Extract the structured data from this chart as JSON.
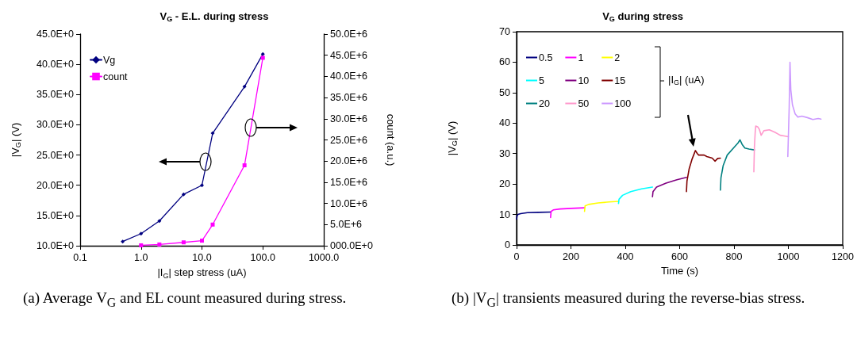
{
  "chart_data": [
    {
      "type": "line",
      "title": "V$_{G}$ - E.L. during stress",
      "xlabel": "|I$_{G}$| step stress (uA)",
      "ylabel": "|V$_{G}$| (V)",
      "y2label": "count (a.u.)",
      "log": "x",
      "legend": "top left",
      "xlim": [
        0.1,
        1000
      ],
      "xticks": [
        0.1,
        {
          "value": 1,
          "label": "1.0"
        },
        {
          "value": 10,
          "label": "10.0"
        },
        {
          "value": 100,
          "label": "100.0"
        },
        {
          "value": 1000,
          "label": "1000.0"
        }
      ],
      "ylim": [
        10,
        45
      ],
      "yticks": [
        {
          "value": 10,
          "label": "10.0E+0"
        },
        {
          "value": 15,
          "label": "15.0E+0"
        },
        {
          "value": 20,
          "label": "20.0E+0"
        },
        {
          "value": 25,
          "label": "25.0E+0"
        },
        {
          "value": 30,
          "label": "30.0E+0"
        },
        {
          "value": 35,
          "label": "35.0E+0"
        },
        {
          "value": 40,
          "label": "40.0E+0"
        },
        {
          "value": 45,
          "label": "45.0E+0"
        }
      ],
      "y2lim": [
        0,
        50000000
      ],
      "y2ticks": [
        {
          "value": 0,
          "label": "000.0E+0"
        },
        {
          "value": 5000000,
          "label": "5.0E+6"
        },
        {
          "value": 10000000,
          "label": "10.0E+6"
        },
        {
          "value": 15000000,
          "label": "15.0E+6"
        },
        {
          "value": 20000000,
          "label": "20.0E+6"
        },
        {
          "value": 25000000,
          "label": "25.0E+6"
        },
        {
          "value": 30000000,
          "label": "30.0E+6"
        },
        {
          "value": 35000000,
          "label": "35.0E+6"
        },
        {
          "value": 40000000,
          "label": "40.0E+6"
        },
        {
          "value": 45000000,
          "label": "45.0E+6"
        },
        {
          "value": 50000000,
          "label": "50.0E+6"
        }
      ],
      "series": [
        {
          "name": "Vg",
          "color": "#000080",
          "marker": "diamond",
          "x": [
            0.5,
            1,
            2,
            5,
            10,
            15,
            50,
            100
          ],
          "values": [
            10.7,
            12.0,
            14.1,
            18.5,
            20.0,
            28.6,
            36.3,
            41.7
          ]
        },
        {
          "name": "count",
          "color": "#ff00ff",
          "marker": "square",
          "axis": "y2",
          "x": [
            1,
            2,
            5,
            10,
            15,
            50,
            100
          ],
          "values": [
            100000,
            300000,
            800000,
            1200000,
            5000000,
            19000000,
            44400000
          ]
        }
      ],
      "annotations": [
        "(a) Average V$_{G}$ and EL count measured during stress."
      ]
    },
    {
      "type": "line",
      "title": "V$_{G}$ during stress",
      "xlabel": "Time (s)",
      "ylabel": "|V$_{G}$| (V)",
      "legend": "top left",
      "legend_title": "|I$_{G}$| (uA)",
      "marker": "none",
      "xlim": [
        0,
        1200
      ],
      "xticks": [
        0,
        200,
        400,
        600,
        800,
        1000,
        1200
      ],
      "ylim": [
        0,
        70
      ],
      "yticks": [
        0,
        10,
        20,
        30,
        40,
        50,
        60,
        70
      ],
      "series": [
        {
          "name": "0.5",
          "color": "#000080",
          "x": [
            0,
            2,
            5,
            15,
            40,
            80,
            125
          ],
          "values": [
            8.5,
            9.6,
            10.0,
            10.3,
            10.6,
            10.7,
            10.8
          ]
        },
        {
          "name": "1",
          "color": "#ff00ff",
          "x": [
            125,
            127,
            135,
            160,
            200,
            250
          ],
          "values": [
            9.0,
            11.0,
            11.5,
            11.8,
            12.0,
            12.2
          ]
        },
        {
          "name": "2",
          "color": "#ffff00",
          "x": [
            250,
            252,
            265,
            300,
            340,
            375
          ],
          "values": [
            11.0,
            12.8,
            13.3,
            13.8,
            14.1,
            14.3
          ]
        },
        {
          "name": "5",
          "color": "#00ffff",
          "x": [
            375,
            377,
            390,
            420,
            460,
            500
          ],
          "values": [
            13.6,
            15.0,
            16.3,
            17.5,
            18.4,
            19.0
          ]
        },
        {
          "name": "10",
          "color": "#800080",
          "x": [
            500,
            502,
            515,
            550,
            590,
            625
          ],
          "values": [
            15.8,
            17.5,
            19.0,
            20.3,
            21.4,
            22.2
          ]
        },
        {
          "name": "15",
          "color": "#800000",
          "x": [
            625,
            627,
            635,
            645,
            658,
            665,
            670,
            690,
            700,
            720,
            730,
            740,
            750
          ],
          "values": [
            17.5,
            21.0,
            25.0,
            28.0,
            31.0,
            30.0,
            29.5,
            29.5,
            29.0,
            28.5,
            27.5,
            28.4,
            28.5
          ]
        },
        {
          "name": "20",
          "color": "#008080",
          "x": [
            750,
            752,
            760,
            775,
            800,
            815,
            822,
            830,
            840,
            855,
            875
          ],
          "values": [
            18.0,
            22.0,
            26.0,
            29.5,
            32.0,
            33.5,
            34.5,
            33.0,
            31.8,
            31.5,
            31.2
          ]
        },
        {
          "name": "50",
          "color": "#ff99cc",
          "x": [
            873,
            875,
            878,
            880,
            887,
            893,
            900,
            910,
            930,
            950,
            970,
            985,
            1000
          ],
          "values": [
            24.0,
            32.0,
            37.0,
            39.0,
            38.8,
            38.0,
            36.0,
            37.5,
            37.8,
            37.0,
            36.0,
            35.8,
            35.5
          ]
        },
        {
          "name": "100",
          "color": "#cc99ff",
          "x": [
            998,
            1003,
            1006,
            1009,
            1015,
            1025,
            1035,
            1050,
            1070,
            1090,
            1110,
            1120
          ],
          "values": [
            29.0,
            45.0,
            60.0,
            51.0,
            46.0,
            43.0,
            42.0,
            42.3,
            41.8,
            41.2,
            41.5,
            41.3
          ]
        }
      ],
      "annotations": [
        "(b) |V$_{G}$| transients measured during the reverse-bias stress."
      ]
    }
  ]
}
